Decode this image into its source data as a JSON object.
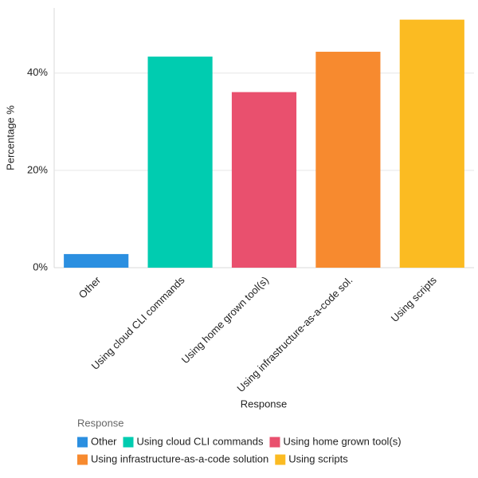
{
  "chart_data": {
    "type": "bar",
    "y_label": "Percentage %",
    "x_label": "Response",
    "categories": [
      "Other",
      "Using cloud CLI commands",
      "Using home grown tool(s)",
      "Using infrastructure-as-a-code sol.",
      "Using scripts"
    ],
    "values": [
      2.8,
      43.4,
      36.1,
      44.4,
      51.0
    ],
    "colors": [
      "#2b8fe0",
      "#00ccb0",
      "#e9506e",
      "#f78a2f",
      "#fbbb22"
    ],
    "ylim": [
      0,
      53.4
    ],
    "yticks": [
      {
        "value": 0,
        "label": "0%"
      },
      {
        "value": 20,
        "label": "20%"
      },
      {
        "value": 40,
        "label": "40%"
      }
    ],
    "grid": true,
    "legend": {
      "title": "Response",
      "items": [
        "Other",
        "Using cloud CLI commands",
        "Using home grown tool(s)",
        "Using infrastructure-as-a-code solution",
        "Using scripts"
      ]
    }
  }
}
